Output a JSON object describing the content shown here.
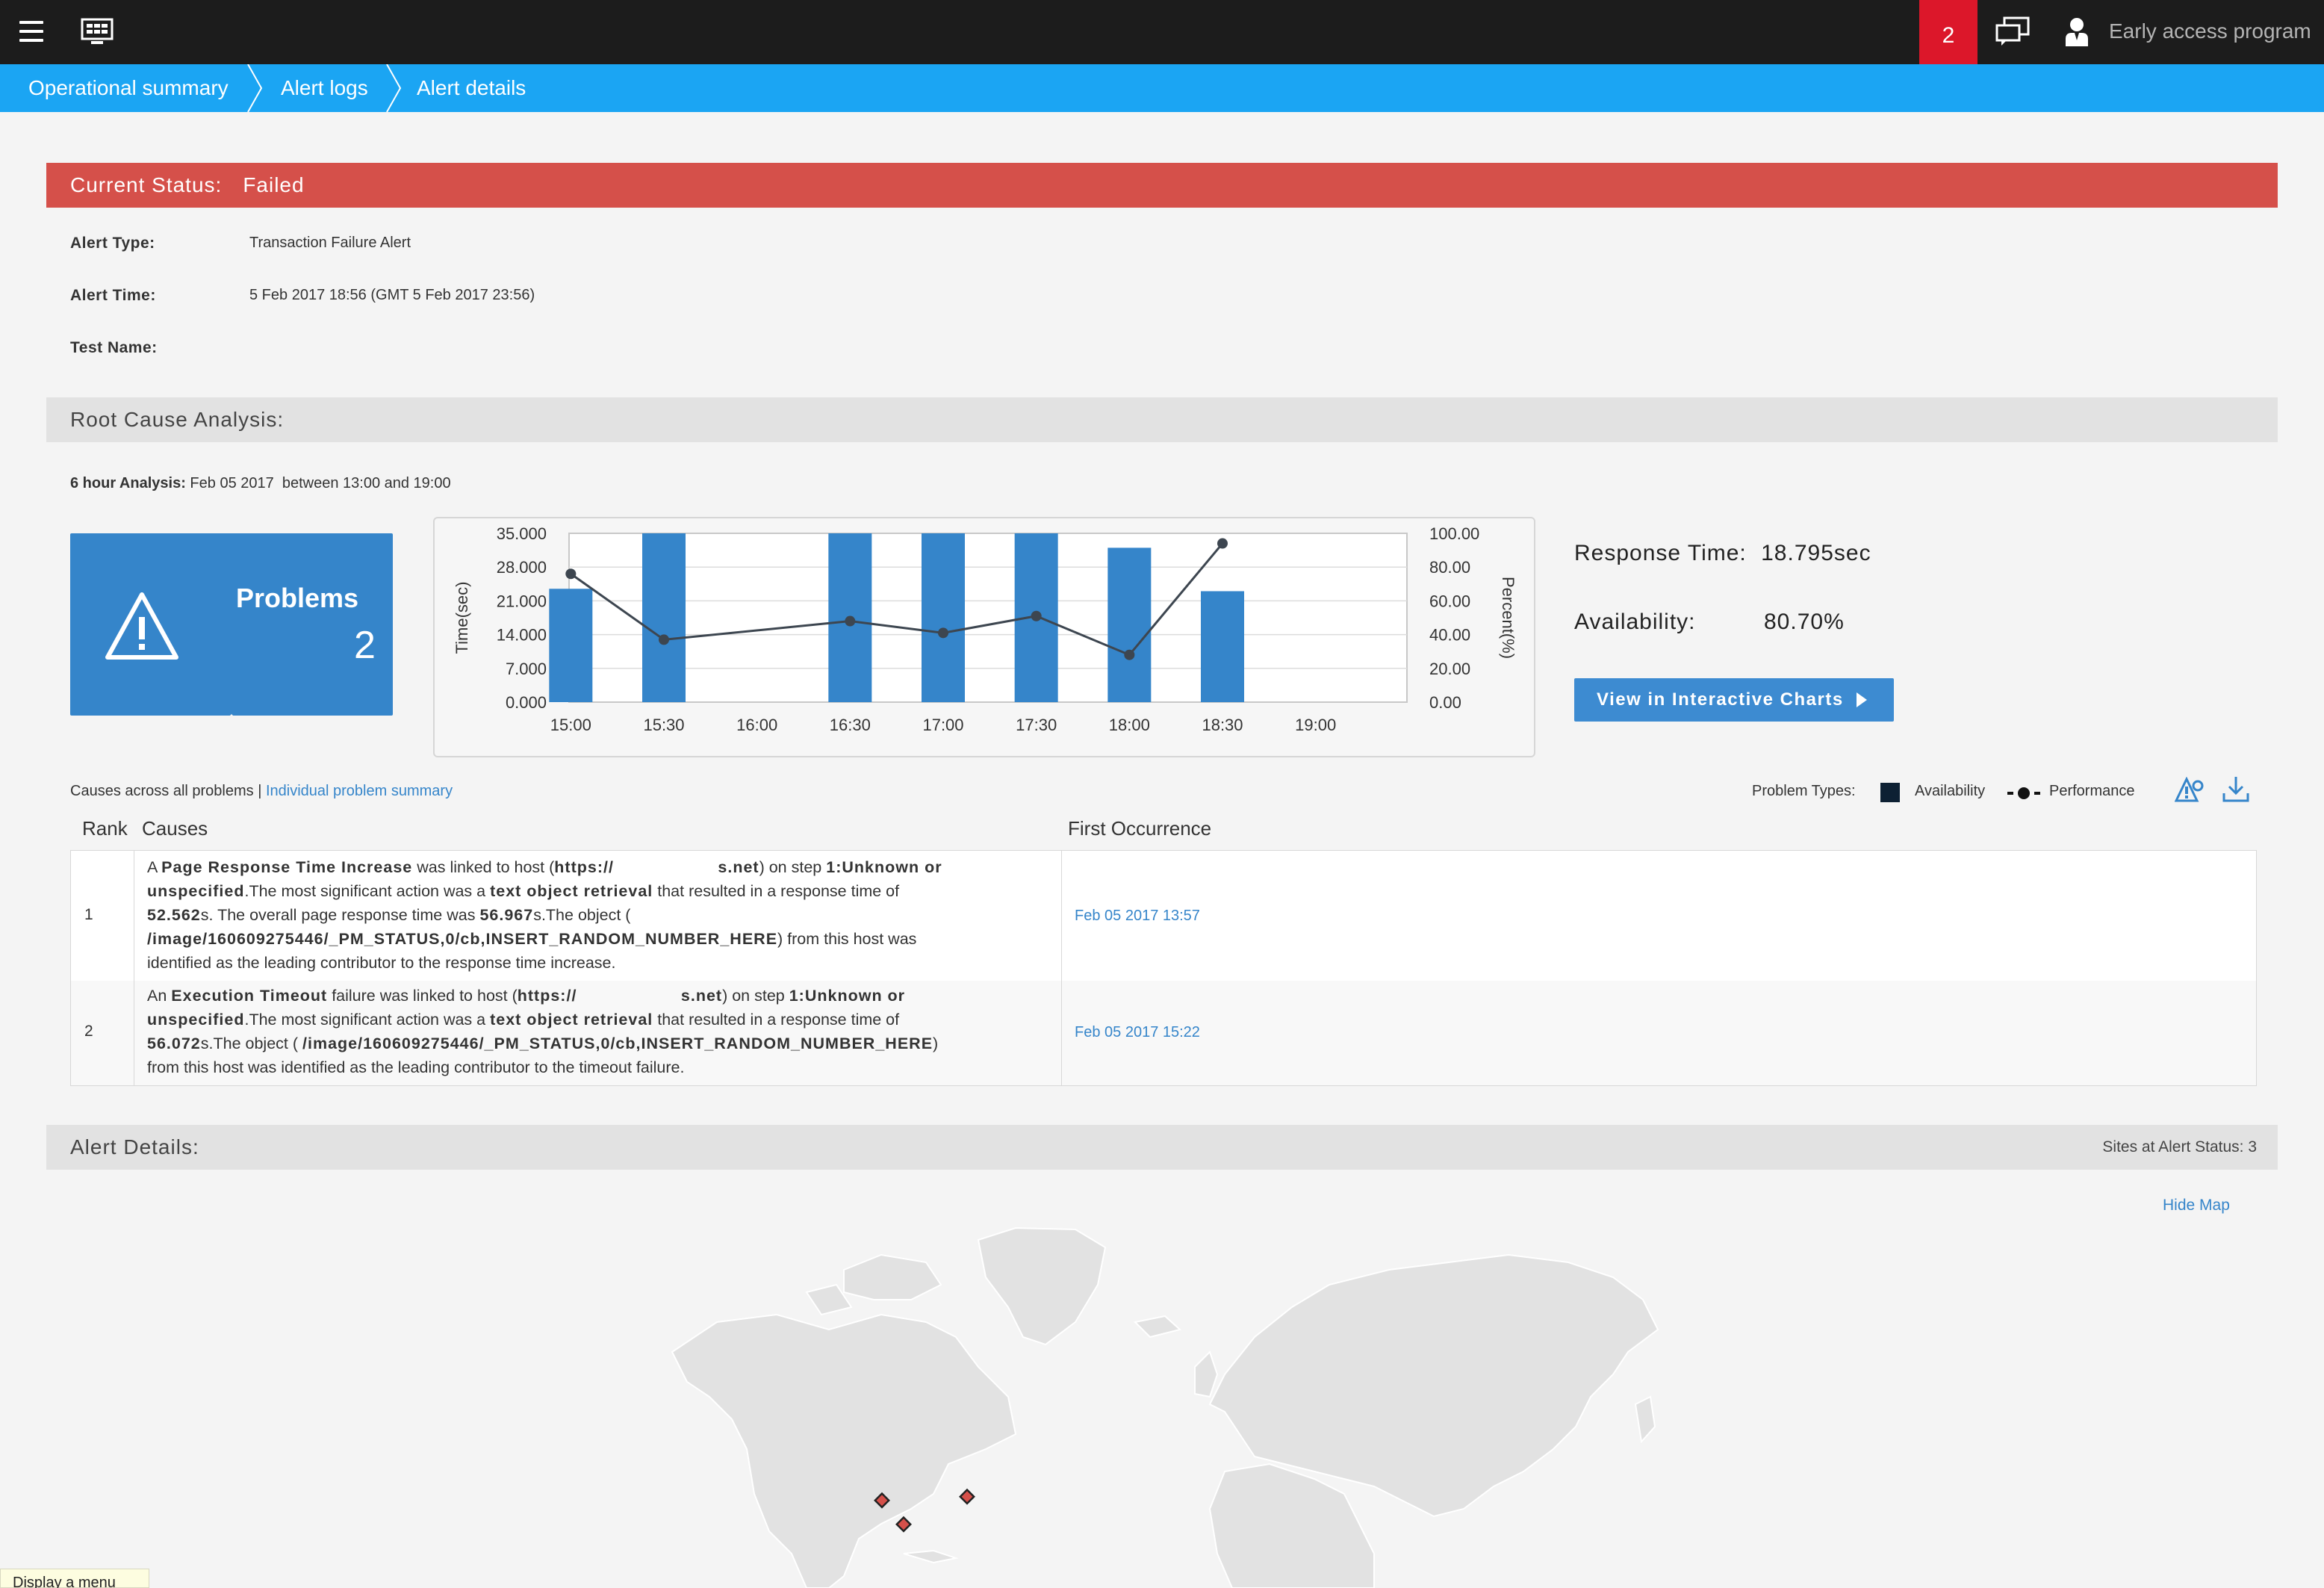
{
  "topbar": {
    "notification_count": "2",
    "early_access_label": "Early access program",
    "accent_color": "#dc172a"
  },
  "breadcrumb": {
    "items": [
      "Operational summary",
      "Alert logs",
      "Alert details"
    ]
  },
  "status": {
    "label": "Current Status:",
    "value": "Failed",
    "color": "#d5504a"
  },
  "alert_info": {
    "type_label": "Alert Type:",
    "type_value": "Transaction Failure Alert",
    "time_label": "Alert Time:",
    "time_value": "5 Feb 2017 18:56 (GMT 5 Feb 2017 23:56)",
    "test_label": "Test Name:",
    "test_value": ""
  },
  "root_cause": {
    "heading": "Root Cause Analysis:",
    "analysis_label": "6 hour Analysis:",
    "analysis_value": "Feb 05 2017  between 13:00 and 19:00",
    "problems_title": "Problems",
    "problems_count": "2",
    "response_time_label": "Response Time:",
    "response_time_value": "18.795sec",
    "availability_label": "Availability:",
    "availability_value": "80.70%",
    "charts_button": "View in Interactive Charts"
  },
  "chart_data": {
    "type": "bar",
    "categories": [
      "15:00",
      "15:30",
      "16:00",
      "16:30",
      "17:00",
      "17:30",
      "18:00",
      "18:30",
      "19:00"
    ],
    "series": [
      {
        "type": "bar",
        "axis": "left",
        "values": [
          23.5,
          35.0,
          null,
          35.0,
          35.0,
          35.0,
          32.0,
          23.0,
          null
        ]
      },
      {
        "type": "line",
        "axis": "right",
        "values": [
          76,
          37,
          null,
          48,
          41,
          51,
          28,
          94,
          null
        ]
      }
    ],
    "xlabel": "",
    "ylabel": "Time(sec)",
    "ylabel_right": "Percent(%)",
    "ylim": [
      0,
      35
    ],
    "ylim_right": [
      0,
      100
    ],
    "yticks": [
      "35.000",
      "28.000",
      "21.000",
      "14.000",
      "7.000",
      "0.000"
    ],
    "yticks_right": [
      "100.00",
      "80.00",
      "60.00",
      "40.00",
      "20.00",
      "0.00"
    ],
    "bar_color": "#3585ca",
    "line_color": "#3d4650"
  },
  "causes": {
    "summary_prefix": "Causes across all problems |",
    "summary_link": "Individual problem summary",
    "problem_types_label": "Problem Types:",
    "availability_legend": "Availability",
    "performance_legend": "Performance",
    "col_rank": "Rank",
    "col_causes": "Causes",
    "col_first": "First Occurrence",
    "rows": [
      {
        "rank": "1",
        "lines": [
          [
            "A ",
            "Page Response Time Increase",
            " was linked to host (",
            "https://",
            "                    s.net",
            ") on step ",
            "1:Unknown or"
          ],
          [
            "unspecified",
            ".The most significant action was a ",
            "text object retrieval",
            " that resulted in a response time of"
          ],
          [
            "52.562",
            "s. The overall page response time was ",
            "56.967",
            "s.The object ("
          ],
          [
            "/image/160609275446/_PM_STATUS,0/cb,INSERT_RANDOM_NUMBER_HERE",
            ") from this host was"
          ],
          [
            "identified as the leading contributor to the response time increase."
          ]
        ],
        "first_occurrence": "Feb 05 2017 13:57"
      },
      {
        "rank": "2",
        "lines": [
          [
            "An ",
            "Execution Timeout",
            " failure was linked to host (",
            "https://",
            "                    s.net",
            ") on step ",
            "1:Unknown or"
          ],
          [
            "unspecified",
            ".The most significant action was a ",
            "text object retrieval",
            " that resulted in a response time of"
          ],
          [
            "56.072",
            "s.The object ( ",
            "/image/160609275446/_PM_STATUS,0/cb,INSERT_RANDOM_NUMBER_HERE",
            ")"
          ],
          [
            "from this host was identified as the leading contributor to the timeout failure."
          ]
        ],
        "first_occurrence": "Feb 05 2017 15:22"
      }
    ]
  },
  "alert_details": {
    "heading": "Alert Details:",
    "sites_status": "Sites at Alert Status: 3",
    "hide_map": "Hide Map"
  },
  "tooltip": "Display a menu"
}
